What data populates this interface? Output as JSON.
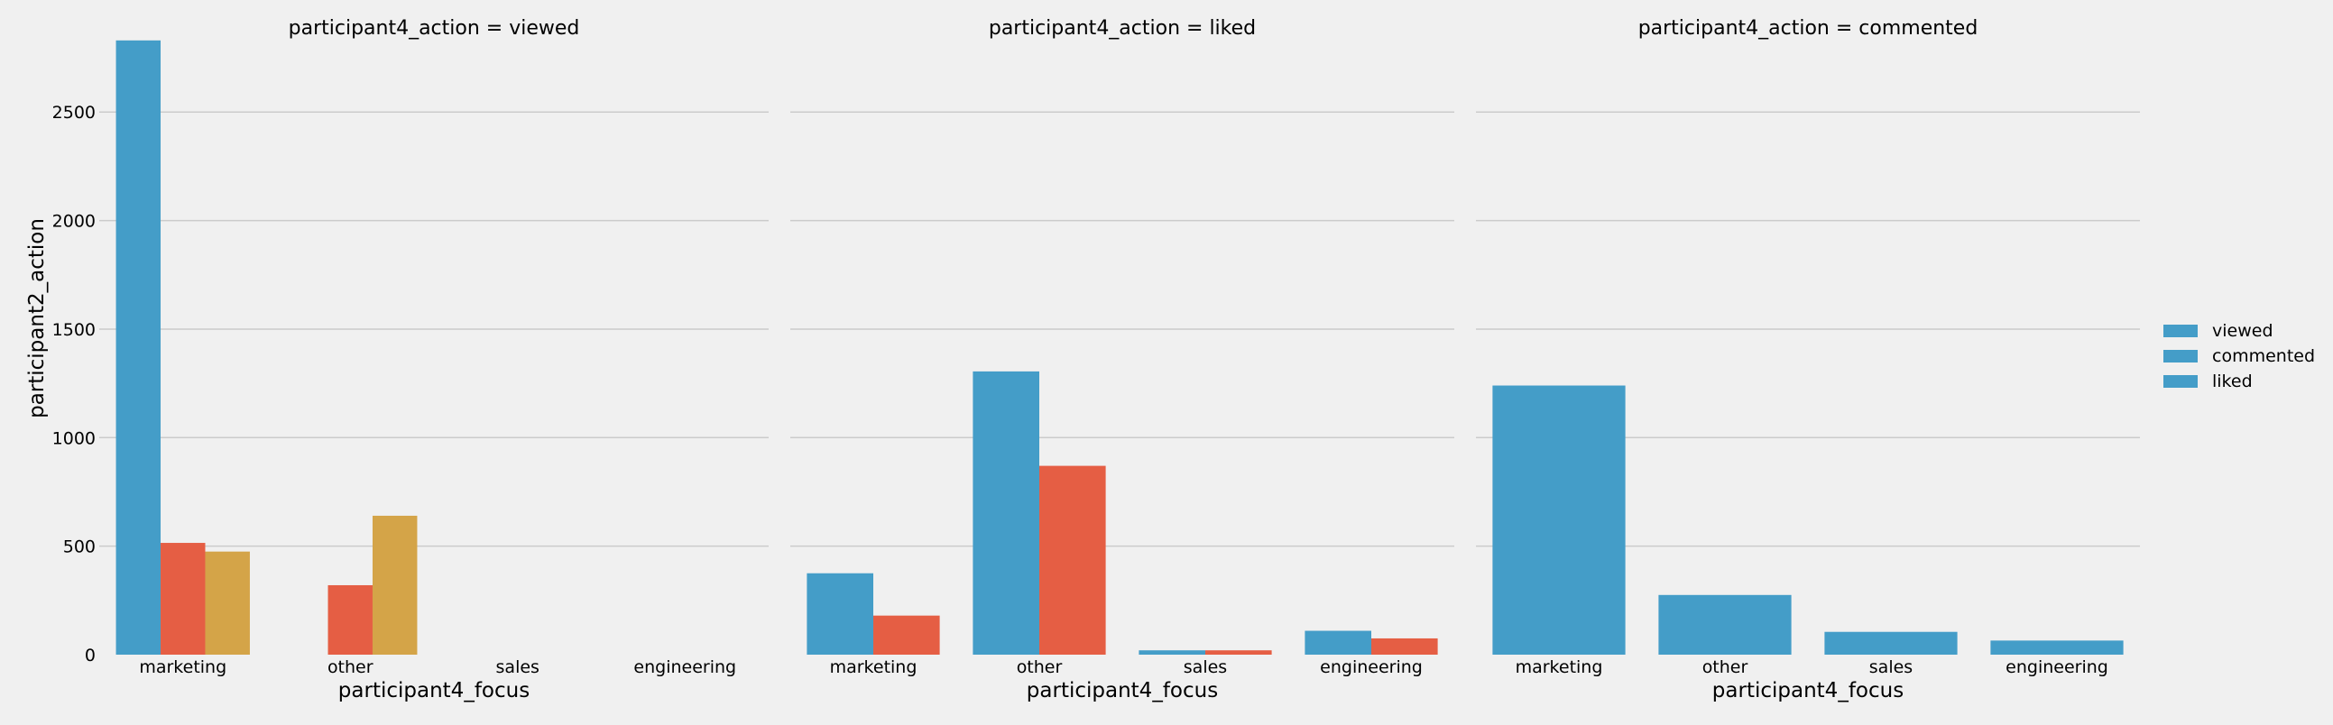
{
  "chart_data": {
    "type": "bar",
    "facet_titles": [
      "participant4_action = viewed",
      "participant4_action = liked",
      "participant4_action = commented"
    ],
    "categories": [
      "marketing",
      "other",
      "sales",
      "engineering"
    ],
    "xlabel": "participant4_focus",
    "ylabel": "participant2_action",
    "ylim": [
      0,
      2850
    ],
    "yticks": [
      0,
      500,
      1000,
      1500,
      2000,
      2500
    ],
    "grid": true,
    "legend_placement": "right",
    "legend": [
      "viewed",
      "commented",
      "liked"
    ],
    "hue_order": [
      "viewed",
      "commented",
      "liked"
    ],
    "colors": {
      "viewed": "#449dc8",
      "commented": "#e55e44",
      "liked": "#d4a448",
      "legend_swatch": "#449dc8",
      "background": "#f0f0f0",
      "grid": "#cbcbcb"
    },
    "facets": [
      {
        "series": [
          {
            "name": "viewed",
            "values": [
              2830,
              null,
              null,
              null
            ]
          },
          {
            "name": "commented",
            "values": [
              515,
              320,
              null,
              null
            ]
          },
          {
            "name": "liked",
            "values": [
              475,
              640,
              null,
              null
            ]
          }
        ]
      },
      {
        "series": [
          {
            "name": "viewed",
            "values": [
              375,
              1305,
              20,
              110
            ]
          },
          {
            "name": "commented",
            "values": [
              180,
              870,
              20,
              75
            ]
          }
        ]
      },
      {
        "series": [
          {
            "name": "viewed",
            "values": [
              1240,
              275,
              105,
              65
            ]
          }
        ]
      }
    ]
  }
}
